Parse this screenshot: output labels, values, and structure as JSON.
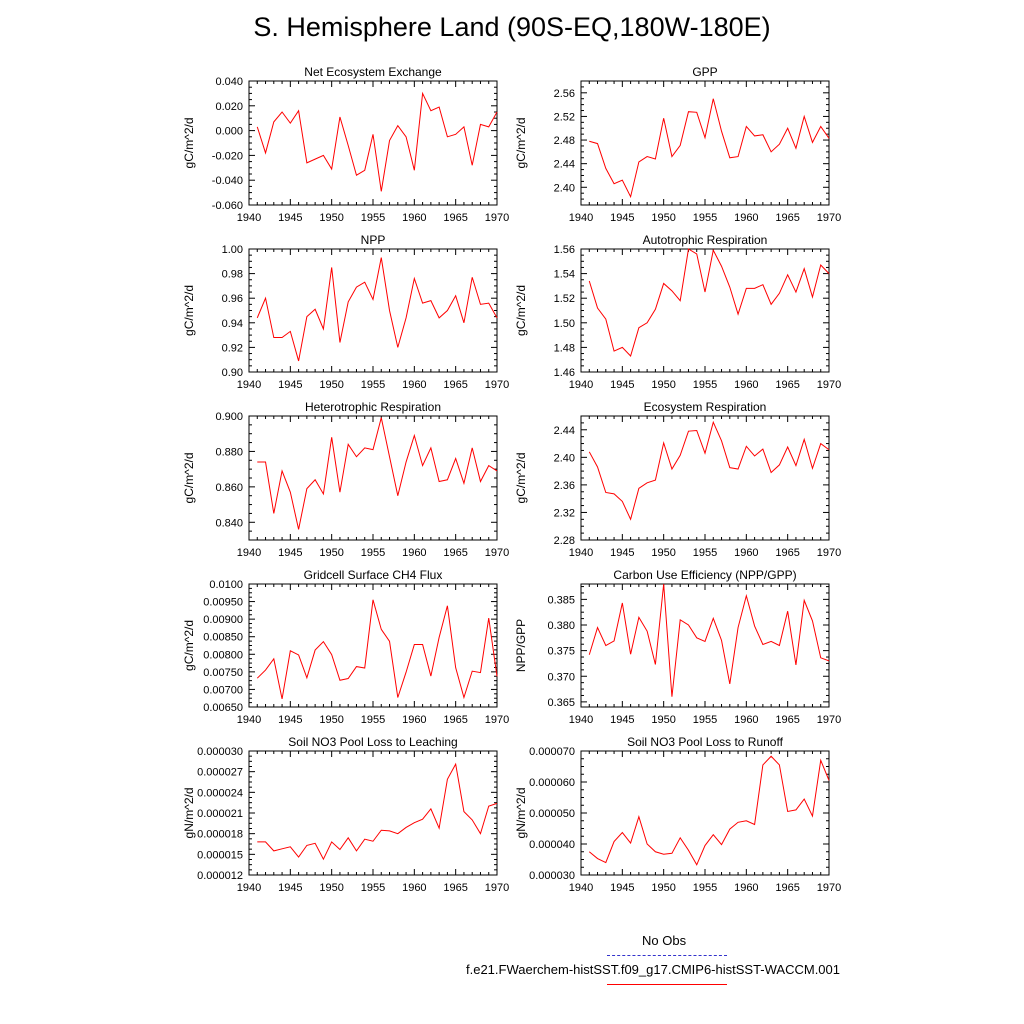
{
  "title": "S. Hemisphere Land (90S-EQ,180W-180E)",
  "legend": {
    "obs_label": "No Obs",
    "model_label": "f.e21.FWaerchem-histSST.f09_g17.CMIP6-histSST-WACCM.001",
    "obs_color": "#3333cc",
    "model_color": "#ff0000"
  },
  "chart_data": [
    {
      "type": "line",
      "title": "Net Ecosystem Exchange",
      "ylabel": "gC/m^2/d",
      "xlim": [
        1940,
        1970
      ],
      "ylim": [
        -0.06,
        0.04
      ],
      "yticks": [
        -0.06,
        -0.04,
        -0.02,
        0.0,
        0.02,
        0.04
      ],
      "ytick_labels": [
        "-0.060",
        "-0.040",
        "-0.020",
        "0.000",
        "0.020",
        "0.040"
      ],
      "xticks": [
        1940,
        1945,
        1950,
        1955,
        1960,
        1965,
        1970
      ],
      "grid": false,
      "x": [
        1941,
        1942,
        1943,
        1944,
        1945,
        1946,
        1947,
        1948,
        1949,
        1950,
        1951,
        1952,
        1953,
        1954,
        1955,
        1956,
        1957,
        1958,
        1959,
        1960,
        1961,
        1962,
        1963,
        1964,
        1965,
        1966,
        1967,
        1968,
        1969,
        1970
      ],
      "values": [
        0.003,
        -0.018,
        0.007,
        0.015,
        0.006,
        0.016,
        -0.026,
        -0.023,
        -0.02,
        -0.031,
        0.011,
        -0.012,
        -0.036,
        -0.032,
        -0.003,
        -0.049,
        -0.008,
        0.004,
        -0.005,
        -0.032,
        0.03,
        0.016,
        0.019,
        -0.005,
        -0.003,
        0.003,
        -0.028,
        0.005,
        0.003,
        0.015
      ]
    },
    {
      "type": "line",
      "title": "GPP",
      "ylabel": "gC/m^2/d",
      "xlim": [
        1940,
        1970
      ],
      "ylim": [
        2.37,
        2.58
      ],
      "yticks": [
        2.4,
        2.44,
        2.48,
        2.52,
        2.56
      ],
      "ytick_labels": [
        "2.40",
        "2.44",
        "2.48",
        "2.52",
        "2.56"
      ],
      "xticks": [
        1940,
        1945,
        1950,
        1955,
        1960,
        1965,
        1970
      ],
      "grid": false,
      "x": [
        1941,
        1942,
        1943,
        1944,
        1945,
        1946,
        1947,
        1948,
        1949,
        1950,
        1951,
        1952,
        1953,
        1954,
        1955,
        1956,
        1957,
        1958,
        1959,
        1960,
        1961,
        1962,
        1963,
        1964,
        1965,
        1966,
        1967,
        1968,
        1969,
        1970
      ],
      "values": [
        2.478,
        2.474,
        2.432,
        2.406,
        2.412,
        2.384,
        2.443,
        2.452,
        2.448,
        2.517,
        2.452,
        2.471,
        2.528,
        2.527,
        2.484,
        2.55,
        2.495,
        2.45,
        2.452,
        2.503,
        2.487,
        2.489,
        2.46,
        2.473,
        2.5,
        2.466,
        2.52,
        2.476,
        2.503,
        2.483
      ]
    },
    {
      "type": "line",
      "title": "NPP",
      "ylabel": "gC/m^2/d",
      "xlim": [
        1940,
        1970
      ],
      "ylim": [
        0.9,
        1.0
      ],
      "yticks": [
        0.9,
        0.92,
        0.94,
        0.96,
        0.98,
        1.0
      ],
      "ytick_labels": [
        "0.90",
        "0.92",
        "0.94",
        "0.96",
        "0.98",
        "1.00"
      ],
      "xticks": [
        1940,
        1945,
        1950,
        1955,
        1960,
        1965,
        1970
      ],
      "grid": false,
      "x": [
        1941,
        1942,
        1943,
        1944,
        1945,
        1946,
        1947,
        1948,
        1949,
        1950,
        1951,
        1952,
        1953,
        1954,
        1955,
        1956,
        1957,
        1958,
        1959,
        1960,
        1961,
        1962,
        1963,
        1964,
        1965,
        1966,
        1967,
        1968,
        1969,
        1970
      ],
      "values": [
        0.944,
        0.96,
        0.928,
        0.928,
        0.933,
        0.909,
        0.945,
        0.951,
        0.935,
        0.985,
        0.924,
        0.957,
        0.969,
        0.973,
        0.959,
        0.993,
        0.95,
        0.92,
        0.944,
        0.976,
        0.956,
        0.958,
        0.944,
        0.95,
        0.962,
        0.94,
        0.977,
        0.955,
        0.956,
        0.944
      ]
    },
    {
      "type": "line",
      "title": "Autotrophic Respiration",
      "ylabel": "gC/m^2/d",
      "xlim": [
        1940,
        1970
      ],
      "ylim": [
        1.46,
        1.56
      ],
      "yticks": [
        1.46,
        1.48,
        1.5,
        1.52,
        1.54,
        1.56
      ],
      "ytick_labels": [
        "1.46",
        "1.48",
        "1.50",
        "1.52",
        "1.54",
        "1.56"
      ],
      "xticks": [
        1940,
        1945,
        1950,
        1955,
        1960,
        1965,
        1970
      ],
      "grid": false,
      "x": [
        1941,
        1942,
        1943,
        1944,
        1945,
        1946,
        1947,
        1948,
        1949,
        1950,
        1951,
        1952,
        1953,
        1954,
        1955,
        1956,
        1957,
        1958,
        1959,
        1960,
        1961,
        1962,
        1963,
        1964,
        1965,
        1966,
        1967,
        1968,
        1969,
        1970
      ],
      "values": [
        1.534,
        1.512,
        1.503,
        1.477,
        1.48,
        1.473,
        1.496,
        1.5,
        1.511,
        1.532,
        1.526,
        1.518,
        1.56,
        1.556,
        1.525,
        1.559,
        1.546,
        1.529,
        1.507,
        1.528,
        1.528,
        1.531,
        1.515,
        1.524,
        1.539,
        1.525,
        1.544,
        1.521,
        1.547,
        1.54
      ]
    },
    {
      "type": "line",
      "title": "Heterotrophic Respiration",
      "ylabel": "gC/m^2/d",
      "xlim": [
        1940,
        1970
      ],
      "ylim": [
        0.83,
        0.9
      ],
      "yticks": [
        0.84,
        0.86,
        0.88,
        0.9
      ],
      "ytick_labels": [
        "0.840",
        "0.860",
        "0.880",
        "0.900"
      ],
      "xticks": [
        1940,
        1945,
        1950,
        1955,
        1960,
        1965,
        1970
      ],
      "grid": false,
      "x": [
        1941,
        1942,
        1943,
        1944,
        1945,
        1946,
        1947,
        1948,
        1949,
        1950,
        1951,
        1952,
        1953,
        1954,
        1955,
        1956,
        1957,
        1958,
        1959,
        1960,
        1961,
        1962,
        1963,
        1964,
        1965,
        1966,
        1967,
        1968,
        1969,
        1970
      ],
      "values": [
        0.874,
        0.874,
        0.845,
        0.869,
        0.857,
        0.836,
        0.859,
        0.864,
        0.856,
        0.888,
        0.857,
        0.884,
        0.877,
        0.882,
        0.881,
        0.899,
        0.877,
        0.855,
        0.874,
        0.889,
        0.872,
        0.882,
        0.863,
        0.864,
        0.876,
        0.862,
        0.882,
        0.863,
        0.872,
        0.869
      ]
    },
    {
      "type": "line",
      "title": "Ecosystem Respiration",
      "ylabel": "gC/m^2/d",
      "xlim": [
        1940,
        1970
      ],
      "ylim": [
        2.28,
        2.46
      ],
      "yticks": [
        2.28,
        2.32,
        2.36,
        2.4,
        2.44
      ],
      "ytick_labels": [
        "2.28",
        "2.32",
        "2.36",
        "2.40",
        "2.44"
      ],
      "xticks": [
        1940,
        1945,
        1950,
        1955,
        1960,
        1965,
        1970
      ],
      "grid": false,
      "x": [
        1941,
        1942,
        1943,
        1944,
        1945,
        1946,
        1947,
        1948,
        1949,
        1950,
        1951,
        1952,
        1953,
        1954,
        1955,
        1956,
        1957,
        1958,
        1959,
        1960,
        1961,
        1962,
        1963,
        1964,
        1965,
        1966,
        1967,
        1968,
        1969,
        1970
      ],
      "values": [
        2.408,
        2.386,
        2.349,
        2.347,
        2.336,
        2.31,
        2.355,
        2.363,
        2.367,
        2.421,
        2.383,
        2.403,
        2.438,
        2.439,
        2.406,
        2.451,
        2.424,
        2.385,
        2.383,
        2.416,
        2.402,
        2.412,
        2.378,
        2.389,
        2.415,
        2.388,
        2.426,
        2.384,
        2.42,
        2.411
      ]
    },
    {
      "type": "line",
      "title": "Gridcell Surface CH4 Flux",
      "ylabel": "gC/m^2/d",
      "xlim": [
        1940,
        1970
      ],
      "ylim": [
        0.0065,
        0.01
      ],
      "yticks": [
        0.0065,
        0.007,
        0.0075,
        0.008,
        0.0085,
        0.009,
        0.0095,
        0.01
      ],
      "ytick_labels": [
        "0.00650",
        "0.00700",
        "0.00750",
        "0.00800",
        "0.00850",
        "0.00900",
        "0.00950",
        "0.0100"
      ],
      "xticks": [
        1940,
        1945,
        1950,
        1955,
        1960,
        1965,
        1970
      ],
      "grid": false,
      "x": [
        1941,
        1942,
        1943,
        1944,
        1945,
        1946,
        1947,
        1948,
        1949,
        1950,
        1951,
        1952,
        1953,
        1954,
        1955,
        1956,
        1957,
        1958,
        1959,
        1960,
        1961,
        1962,
        1963,
        1964,
        1965,
        1966,
        1967,
        1968,
        1969,
        1970
      ],
      "values": [
        0.00732,
        0.00755,
        0.00787,
        0.00673,
        0.0081,
        0.00798,
        0.00733,
        0.00812,
        0.00836,
        0.00799,
        0.00726,
        0.00731,
        0.00765,
        0.00761,
        0.00955,
        0.00871,
        0.00837,
        0.00677,
        0.00749,
        0.00828,
        0.00828,
        0.00738,
        0.00848,
        0.00938,
        0.00762,
        0.00677,
        0.00752,
        0.00748,
        0.00903,
        0.00737
      ]
    },
    {
      "type": "line",
      "title": "Carbon Use Efficiency (NPP/GPP)",
      "ylabel": "NPP/GPP",
      "xlim": [
        1940,
        1970
      ],
      "ylim": [
        0.364,
        0.388
      ],
      "yticks": [
        0.365,
        0.37,
        0.375,
        0.38,
        0.385
      ],
      "ytick_labels": [
        "0.365",
        "0.370",
        "0.375",
        "0.380",
        "0.385"
      ],
      "xticks": [
        1940,
        1945,
        1950,
        1955,
        1960,
        1965,
        1970
      ],
      "grid": false,
      "x": [
        1941,
        1942,
        1943,
        1944,
        1945,
        1946,
        1947,
        1948,
        1949,
        1950,
        1951,
        1952,
        1953,
        1954,
        1955,
        1956,
        1957,
        1958,
        1959,
        1960,
        1961,
        1962,
        1963,
        1964,
        1965,
        1966,
        1967,
        1968,
        1969,
        1970
      ],
      "values": [
        0.3742,
        0.3795,
        0.376,
        0.3769,
        0.3843,
        0.3743,
        0.3815,
        0.3788,
        0.3723,
        0.388,
        0.366,
        0.381,
        0.38,
        0.3775,
        0.3768,
        0.3813,
        0.377,
        0.3685,
        0.3795,
        0.3857,
        0.3798,
        0.3762,
        0.3768,
        0.376,
        0.3827,
        0.3722,
        0.3848,
        0.3808,
        0.3736,
        0.373
      ]
    },
    {
      "type": "line",
      "title": "Soil NO3 Pool Loss to Leaching",
      "ylabel": "gN/m^2/d",
      "xlim": [
        1940,
        1970
      ],
      "ylim": [
        1.2e-05,
        3e-05
      ],
      "yticks": [
        1.2e-05,
        1.5e-05,
        1.8e-05,
        2.1e-05,
        2.4e-05,
        2.7e-05,
        3e-05
      ],
      "ytick_labels": [
        "0.000012",
        "0.000015",
        "0.000018",
        "0.000021",
        "0.000024",
        "0.000027",
        "0.000030"
      ],
      "xticks": [
        1940,
        1945,
        1950,
        1955,
        1960,
        1965,
        1970
      ],
      "grid": false,
      "x": [
        1941,
        1942,
        1943,
        1944,
        1945,
        1946,
        1947,
        1948,
        1949,
        1950,
        1951,
        1952,
        1953,
        1954,
        1955,
        1956,
        1957,
        1958,
        1959,
        1960,
        1961,
        1962,
        1963,
        1964,
        1965,
        1966,
        1967,
        1968,
        1969,
        1970
      ],
      "values": [
        1.68e-05,
        1.68e-05,
        1.55e-05,
        1.58e-05,
        1.61e-05,
        1.46e-05,
        1.63e-05,
        1.66e-05,
        1.43e-05,
        1.68e-05,
        1.57e-05,
        1.74e-05,
        1.55e-05,
        1.72e-05,
        1.69e-05,
        1.85e-05,
        1.84e-05,
        1.8e-05,
        1.89e-05,
        1.96e-05,
        2.01e-05,
        2.16e-05,
        1.88e-05,
        2.59e-05,
        2.81e-05,
        2.12e-05,
        2e-05,
        1.8e-05,
        2.2e-05,
        2.24e-05
      ]
    },
    {
      "type": "line",
      "title": "Soil NO3 Pool Loss to Runoff",
      "ylabel": "gN/m^2/d",
      "xlim": [
        1940,
        1970
      ],
      "ylim": [
        3e-05,
        7e-05
      ],
      "yticks": [
        3e-05,
        4e-05,
        5e-05,
        6e-05,
        7e-05
      ],
      "ytick_labels": [
        "0.000030",
        "0.000040",
        "0.000050",
        "0.000060",
        "0.000070"
      ],
      "xticks": [
        1940,
        1945,
        1950,
        1955,
        1960,
        1965,
        1970
      ],
      "grid": false,
      "x": [
        1941,
        1942,
        1943,
        1944,
        1945,
        1946,
        1947,
        1948,
        1949,
        1950,
        1951,
        1952,
        1953,
        1954,
        1955,
        1956,
        1957,
        1958,
        1959,
        1960,
        1961,
        1962,
        1963,
        1964,
        1965,
        1966,
        1967,
        1968,
        1969,
        1970
      ],
      "values": [
        3.75e-05,
        3.53e-05,
        3.4e-05,
        4.08e-05,
        4.37e-05,
        4.03e-05,
        4.88e-05,
        4e-05,
        3.75e-05,
        3.67e-05,
        3.7e-05,
        4.2e-05,
        3.8e-05,
        3.33e-05,
        3.95e-05,
        4.3e-05,
        3.98e-05,
        4.48e-05,
        4.7e-05,
        4.75e-05,
        4.63e-05,
        6.55e-05,
        6.83e-05,
        6.55e-05,
        5.05e-05,
        5.1e-05,
        5.45e-05,
        4.9e-05,
        6.7e-05,
        6.05e-05
      ]
    }
  ]
}
